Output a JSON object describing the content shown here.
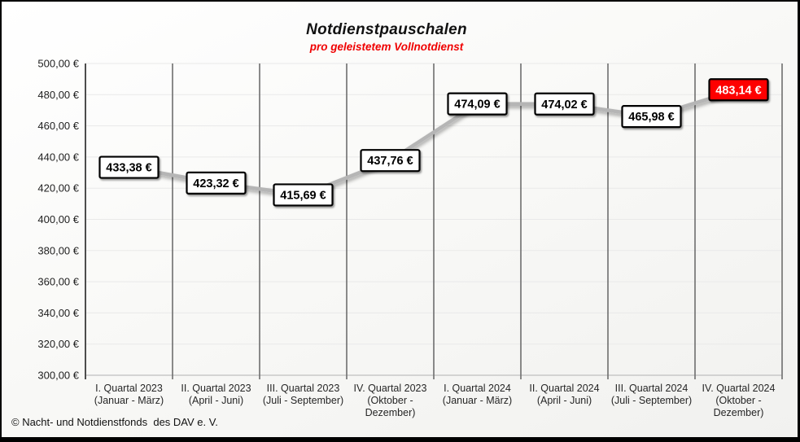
{
  "header": {
    "title": "Notdienstpauschalen",
    "subtitle": "pro geleistetem Vollnotdienst",
    "subtitle_color": "#f00000"
  },
  "footer": {
    "copyright": "© Nacht- und Notdienstfonds  des DAV e. V."
  },
  "chart_data": {
    "type": "line",
    "title": "Notdienstpauschalen",
    "subtitle": "pro geleistetem Vollnotdienst",
    "categories": [
      [
        "I. Quartal 2023",
        "(Januar - März)"
      ],
      [
        "II. Quartal 2023",
        "(April - Juni)"
      ],
      [
        "III. Quartal 2023",
        "(Juli - September)"
      ],
      [
        "IV. Quartal 2023",
        "(Oktober -",
        "Dezember)"
      ],
      [
        "I. Quartal 2024",
        "(Januar - März)"
      ],
      [
        "II. Quartal 2024",
        "(April - Juni)"
      ],
      [
        "III. Quartal 2024",
        "(Juli - September)"
      ],
      [
        "IV. Quartal 2024",
        "(Oktober -",
        "Dezember)"
      ]
    ],
    "values": [
      433.38,
      423.32,
      415.69,
      437.76,
      474.09,
      474.02,
      465.98,
      483.14
    ],
    "point_labels": [
      "433,38 €",
      "423,32 €",
      "415,69 €",
      "437,76 €",
      "474,09 €",
      "474,02 €",
      "465,98 €",
      "483,14 €"
    ],
    "highlight_index": 7,
    "ylim": [
      300,
      500
    ],
    "ytick_step": 20,
    "ytick_labels": [
      "300,00 €",
      "320,00 €",
      "340,00 €",
      "360,00 €",
      "380,00 €",
      "400,00 €",
      "420,00 €",
      "440,00 €",
      "460,00 €",
      "480,00 €",
      "500,00 €"
    ],
    "grid": {
      "vertical": true,
      "horizontal": true
    },
    "legend": "none",
    "colors": {
      "line": "#b5b5b5",
      "label_bg": "#ffffff",
      "label_border": "#000000",
      "label_text": "#000000",
      "highlight_bg": "#fe0000",
      "highlight_text": "#ffffff",
      "grid_vertical": "#6e6e6e",
      "grid_horizontal": "#e9e9e9",
      "axis_y": "#4d4d4d",
      "axis_bottom": "#c8c8c8",
      "tick_text": "#1f1f1f"
    }
  }
}
